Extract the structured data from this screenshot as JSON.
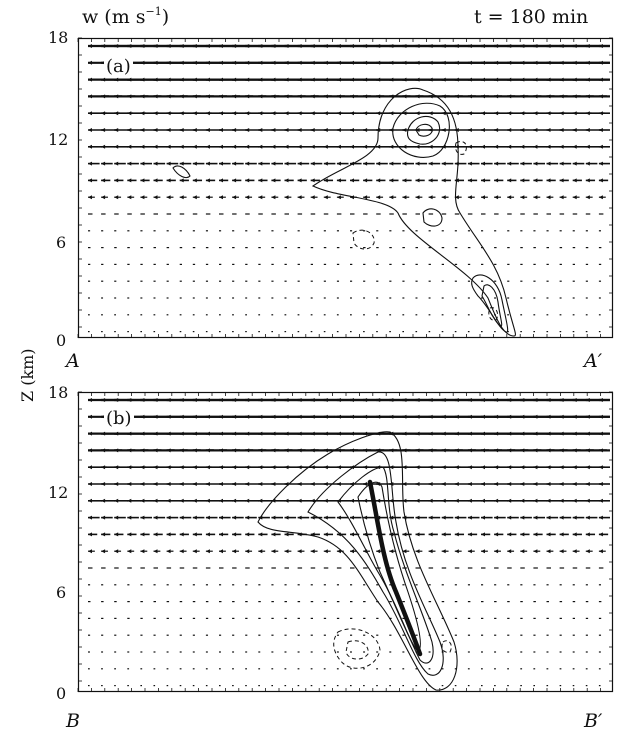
{
  "header": {
    "variable_label": "w (m s",
    "variable_exp": "−1",
    "variable_close": ")",
    "time_label": "t = 180 min"
  },
  "y_axis": {
    "label": "Z (km)",
    "ticks": [
      "0",
      "6",
      "12",
      "18"
    ]
  },
  "panels": [
    {
      "id": "a",
      "label": "(a)",
      "left_end": "A",
      "right_end": "A′"
    },
    {
      "id": "b",
      "label": "(b)",
      "left_end": "B",
      "right_end": "B′"
    }
  ],
  "colors": {
    "ink": "#111111",
    "background": "#ffffff"
  }
}
